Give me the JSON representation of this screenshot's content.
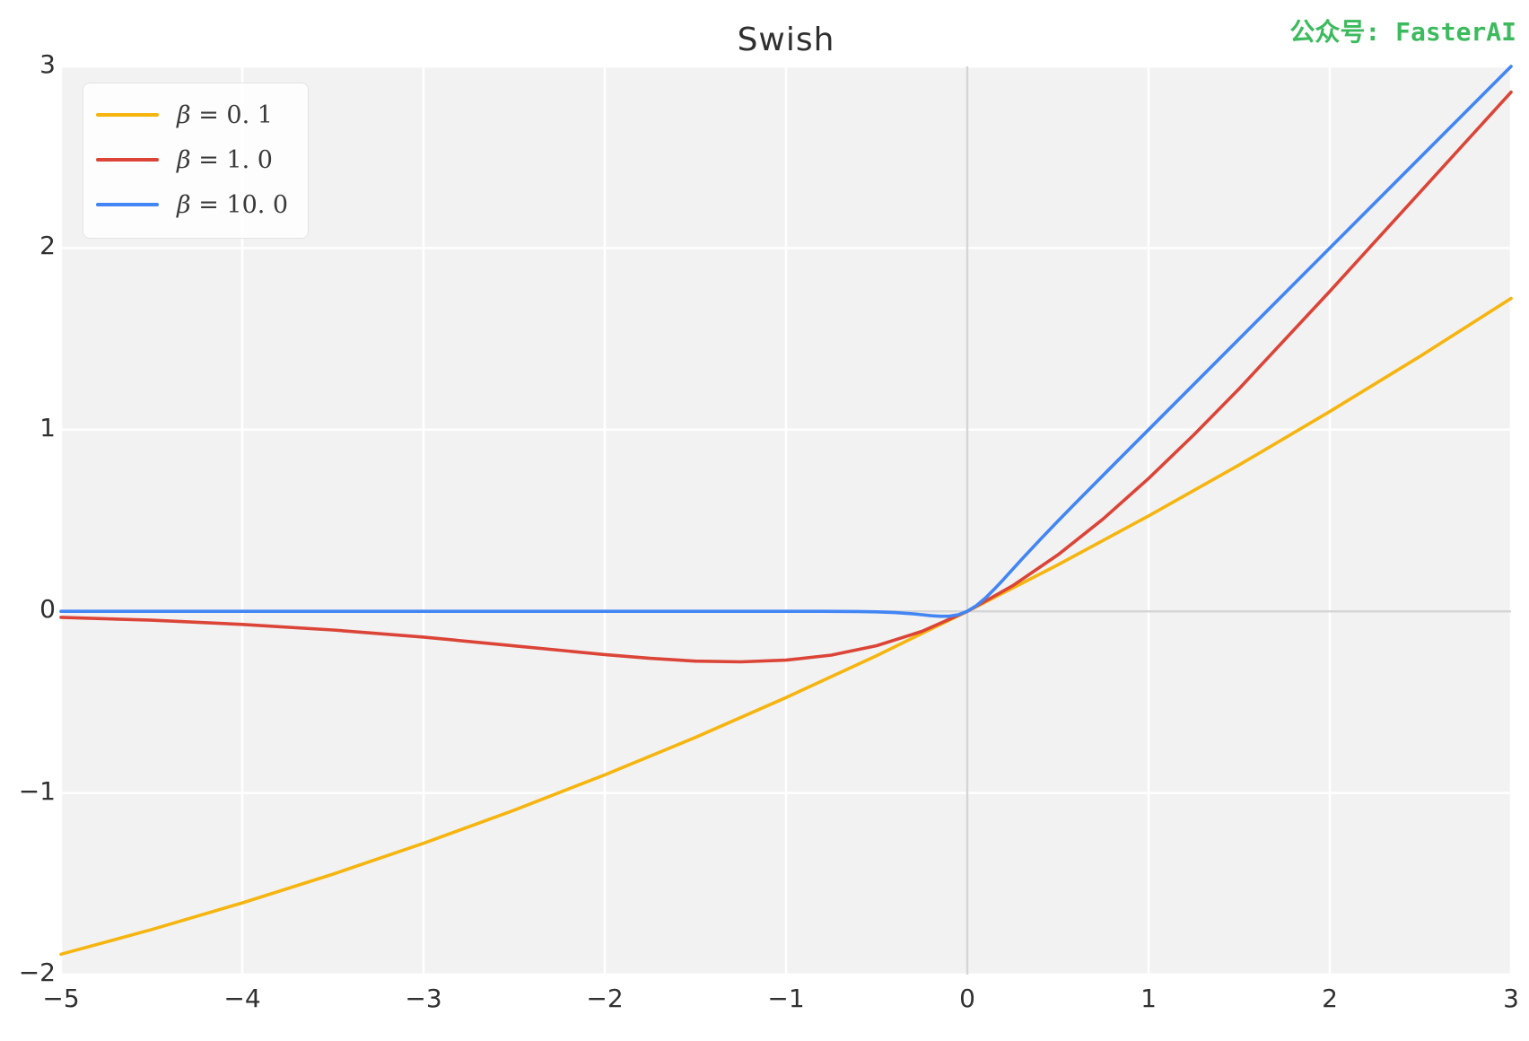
{
  "watermark": {
    "text": "公众号: FasterAI",
    "color": "#3CBA5D"
  },
  "chart_data": {
    "type": "line",
    "title": "Swish",
    "xlabel": "",
    "ylabel": "",
    "xlim": [
      -5,
      3
    ],
    "ylim": [
      -2,
      3
    ],
    "xticks": [
      {
        "v": -5,
        "label": "−5"
      },
      {
        "v": -4,
        "label": "−4"
      },
      {
        "v": -3,
        "label": "−3"
      },
      {
        "v": -2,
        "label": "−2"
      },
      {
        "v": -1,
        "label": "−1"
      },
      {
        "v": 0,
        "label": "0"
      },
      {
        "v": 1,
        "label": "1"
      },
      {
        "v": 2,
        "label": "2"
      },
      {
        "v": 3,
        "label": "3"
      }
    ],
    "yticks": [
      {
        "v": -2,
        "label": "−2"
      },
      {
        "v": -1,
        "label": "−1"
      },
      {
        "v": 0,
        "label": "0"
      },
      {
        "v": 1,
        "label": "1"
      },
      {
        "v": 2,
        "label": "2"
      },
      {
        "v": 3,
        "label": "3"
      }
    ],
    "grid": true,
    "grid_color": "#ffffff",
    "background_color": "#f2f2f2",
    "zero_line_color": "#d6d6d6",
    "legend": {
      "position": "upper left"
    },
    "series": [
      {
        "label": "β = 0.1",
        "label_symbol": "β",
        "label_value": " = 0. 1",
        "beta": 0.1,
        "color": "#F6B40E",
        "points": [
          [
            -5,
            -1.888
          ],
          [
            -4.5,
            -1.752
          ],
          [
            -4,
            -1.605
          ],
          [
            -3.5,
            -1.447
          ],
          [
            -3,
            -1.277
          ],
          [
            -2.5,
            -1.095
          ],
          [
            -2,
            -0.9
          ],
          [
            -1.5,
            -0.694
          ],
          [
            -1,
            -0.475
          ],
          [
            -0.5,
            -0.244
          ],
          [
            0,
            0
          ],
          [
            0.5,
            0.256
          ],
          [
            1,
            0.525
          ],
          [
            1.5,
            0.806
          ],
          [
            2,
            1.1
          ],
          [
            2.5,
            1.405
          ],
          [
            3,
            1.723
          ]
        ]
      },
      {
        "label": "β = 1.0",
        "label_symbol": "β",
        "label_value": " = 1. 0",
        "beta": 1.0,
        "color": "#DB4437",
        "points": [
          [
            -5,
            -0.033
          ],
          [
            -4.5,
            -0.049
          ],
          [
            -4,
            -0.072
          ],
          [
            -3.5,
            -0.103
          ],
          [
            -3,
            -0.142
          ],
          [
            -2.5,
            -0.19
          ],
          [
            -2,
            -0.238
          ],
          [
            -1.75,
            -0.259
          ],
          [
            -1.5,
            -0.274
          ],
          [
            -1.25,
            -0.278
          ],
          [
            -1,
            -0.269
          ],
          [
            -0.75,
            -0.241
          ],
          [
            -0.5,
            -0.189
          ],
          [
            -0.25,
            -0.11
          ],
          [
            0,
            0
          ],
          [
            0.25,
            0.141
          ],
          [
            0.5,
            0.311
          ],
          [
            0.75,
            0.509
          ],
          [
            1,
            0.731
          ],
          [
            1.25,
            0.972
          ],
          [
            1.5,
            1.226
          ],
          [
            2,
            1.762
          ],
          [
            2.5,
            2.31
          ],
          [
            3,
            2.858
          ]
        ]
      },
      {
        "label": "β = 10.0",
        "label_symbol": "β",
        "label_value": " = 10. 0",
        "beta": 10.0,
        "color": "#4285F4",
        "points": [
          [
            -5,
            0
          ],
          [
            -3,
            0
          ],
          [
            -2,
            0
          ],
          [
            -1,
            0
          ],
          [
            -0.8,
            0
          ],
          [
            -0.6,
            -0.001
          ],
          [
            -0.5,
            -0.003
          ],
          [
            -0.4,
            -0.007
          ],
          [
            -0.3,
            -0.014
          ],
          [
            -0.25,
            -0.019
          ],
          [
            -0.2,
            -0.024
          ],
          [
            -0.15,
            -0.027
          ],
          [
            -0.1,
            -0.027
          ],
          [
            -0.05,
            -0.019
          ],
          [
            0,
            0
          ],
          [
            0.05,
            0.031
          ],
          [
            0.1,
            0.073
          ],
          [
            0.15,
            0.123
          ],
          [
            0.2,
            0.176
          ],
          [
            0.25,
            0.231
          ],
          [
            0.3,
            0.286
          ],
          [
            0.4,
            0.393
          ],
          [
            0.5,
            0.497
          ],
          [
            0.6,
            0.599
          ],
          [
            0.8,
            0.8
          ],
          [
            1,
            1.0
          ],
          [
            1.5,
            1.5
          ],
          [
            2,
            2.0
          ],
          [
            2.5,
            2.5
          ],
          [
            3,
            3.0
          ]
        ]
      }
    ]
  }
}
